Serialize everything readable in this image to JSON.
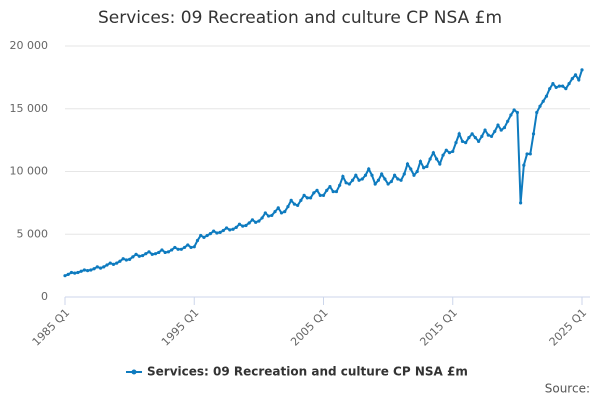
{
  "chart_data": {
    "type": "line",
    "title": "Services: 09 Recreation and culture CP NSA £m",
    "source": "Source:",
    "categories": [
      "1985 Q1",
      null,
      null,
      null,
      null,
      null,
      null,
      null,
      null,
      null,
      null,
      null,
      null,
      null,
      null,
      null,
      null,
      null,
      null,
      null,
      null,
      null,
      null,
      null,
      null,
      null,
      null,
      null,
      null,
      null,
      null,
      null,
      null,
      null,
      null,
      null,
      null,
      null,
      null,
      null,
      "1995 Q1",
      null,
      null,
      null,
      null,
      null,
      null,
      null,
      null,
      null,
      null,
      null,
      null,
      null,
      null,
      null,
      null,
      null,
      null,
      null,
      null,
      null,
      null,
      null,
      null,
      null,
      null,
      null,
      null,
      null,
      null,
      null,
      null,
      null,
      null,
      null,
      null,
      null,
      null,
      null,
      "2005 Q1",
      null,
      null,
      null,
      null,
      null,
      null,
      null,
      null,
      null,
      null,
      null,
      null,
      null,
      null,
      null,
      null,
      null,
      null,
      null,
      null,
      null,
      null,
      null,
      null,
      null,
      null,
      null,
      null,
      null,
      null,
      null,
      null,
      null,
      null,
      null,
      null,
      null,
      null,
      null,
      "2015 Q1",
      null,
      null,
      null,
      null,
      null,
      null,
      null,
      null,
      null,
      null,
      null,
      null,
      null,
      null,
      null,
      null,
      null,
      null,
      null,
      null,
      null,
      null,
      null,
      null,
      null,
      null,
      null,
      null,
      null,
      null,
      null,
      null,
      null,
      null,
      null,
      null,
      null,
      null,
      null,
      "2025 Q1"
    ],
    "series": [
      {
        "name": "Services: 09 Recreation and culture CP NSA £m",
        "color": "#0e7bbf",
        "values": [
          1700,
          1800,
          1950,
          1900,
          1950,
          2050,
          2150,
          2100,
          2150,
          2250,
          2400,
          2300,
          2400,
          2550,
          2700,
          2600,
          2700,
          2850,
          3050,
          2950,
          3000,
          3200,
          3400,
          3250,
          3300,
          3450,
          3600,
          3400,
          3450,
          3550,
          3750,
          3550,
          3600,
          3750,
          3950,
          3800,
          3800,
          3950,
          4150,
          3950,
          4000,
          4500,
          4900,
          4750,
          4900,
          5050,
          5250,
          5100,
          5150,
          5300,
          5500,
          5350,
          5400,
          5550,
          5800,
          5650,
          5700,
          5900,
          6150,
          5950,
          6050,
          6300,
          6700,
          6450,
          6500,
          6800,
          7100,
          6700,
          6800,
          7200,
          7700,
          7400,
          7300,
          7700,
          8100,
          7900,
          7900,
          8300,
          8500,
          8100,
          8100,
          8500,
          8800,
          8400,
          8400,
          8900,
          9600,
          9100,
          9000,
          9300,
          9700,
          9300,
          9400,
          9700,
          10200,
          9700,
          9000,
          9300,
          9800,
          9400,
          9000,
          9200,
          9700,
          9400,
          9300,
          9800,
          10600,
          10200,
          9700,
          10000,
          10800,
          10300,
          10400,
          11000,
          11500,
          11000,
          10600,
          11300,
          11700,
          11500,
          11600,
          12300,
          13000,
          12400,
          12300,
          12700,
          13000,
          12700,
          12400,
          12800,
          13300,
          12900,
          12800,
          13200,
          13700,
          13300,
          13500,
          14000,
          14500,
          14900,
          14700,
          7500,
          10500,
          11400,
          11400,
          13000,
          14700,
          15200,
          15600,
          16000,
          16600,
          17000,
          16700,
          16800,
          16800,
          16600,
          17000,
          17400,
          17700,
          17300,
          18100
        ]
      }
    ],
    "ylim": [
      0,
      20000
    ],
    "yticks": [
      0,
      {
        "value": 5000,
        "label": "5 000"
      },
      {
        "value": 10000,
        "label": "10 000"
      },
      {
        "value": 15000,
        "label": "15 000"
      },
      {
        "value": 20000,
        "label": "20 000"
      }
    ],
    "grid": true
  }
}
